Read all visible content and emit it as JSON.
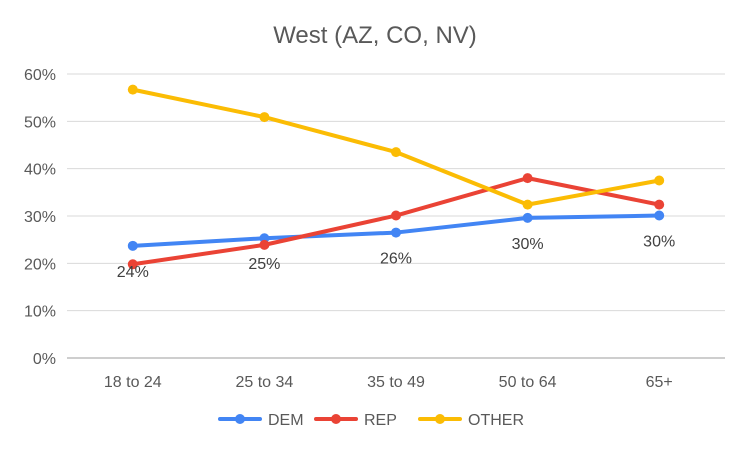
{
  "chart_data": {
    "type": "line",
    "title": "West (AZ, CO, NV)",
    "categories": [
      "18 to 24",
      "25 to 34",
      "35 to 49",
      "50 to 64",
      "65+"
    ],
    "ylim": [
      0,
      60
    ],
    "yticks": [
      "0%",
      "10%",
      "20%",
      "30%",
      "40%",
      "50%",
      "60%"
    ],
    "grid": true,
    "legend_position": "bottom",
    "series": [
      {
        "name": "DEM",
        "color": "#4285f4",
        "values": [
          23.7,
          25.3,
          26.5,
          29.6,
          30.1
        ],
        "data_labels": [
          "24%",
          "25%",
          "26%",
          "30%",
          "30%"
        ]
      },
      {
        "name": "REP",
        "color": "#ea4335",
        "values": [
          19.8,
          23.9,
          30.1,
          38.0,
          32.4
        ]
      },
      {
        "name": "OTHER",
        "color": "#fbbc04",
        "values": [
          56.7,
          50.9,
          43.5,
          32.4,
          37.5
        ]
      }
    ]
  }
}
